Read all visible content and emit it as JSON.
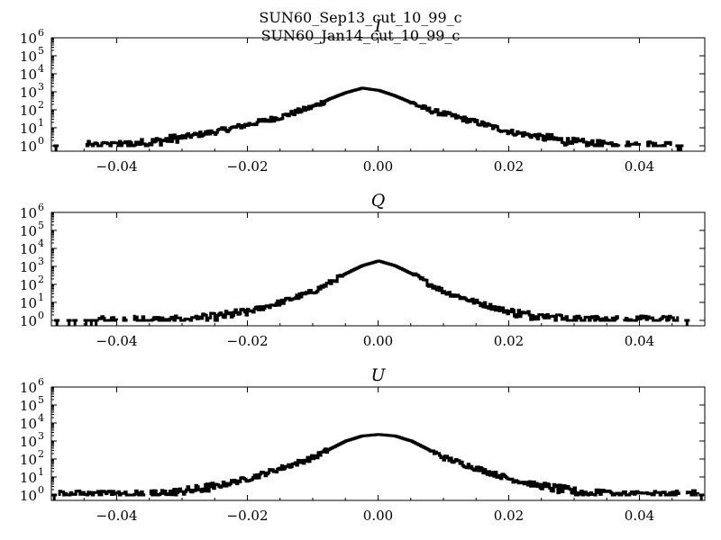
{
  "figure": {
    "title_lines": [
      "SUN60_Sep13_cut_10_99_c",
      "SUN60_Jan14_cut_10_99_c"
    ]
  },
  "chart_data": [
    {
      "type": "line",
      "title": "I",
      "xlim": [
        -0.05,
        0.05
      ],
      "ylim": [
        0.5,
        1000000
      ],
      "yscale": "log",
      "xticks": [
        "−0.04",
        "−0.02",
        "0.00",
        "0.02",
        "0.04"
      ],
      "xtick_values": [
        -0.04,
        -0.02,
        0.0,
        0.02,
        0.04
      ],
      "ytick_exponents": [
        "0",
        "1",
        "2",
        "3",
        "4",
        "5",
        "6"
      ],
      "ytick_base": "10",
      "grid": false,
      "series": [
        {
          "x": [
            -0.045,
            -0.04,
            -0.035,
            -0.03,
            -0.025,
            -0.02,
            -0.015,
            -0.01,
            -0.0075,
            -0.005,
            -0.0025,
            0.0,
            0.0025,
            0.005,
            0.0075,
            0.01,
            0.015,
            0.02,
            0.025,
            0.03,
            0.035,
            0.04,
            0.045
          ],
          "y": [
            1,
            1,
            1.5,
            3,
            6,
            15,
            40,
            150,
            400,
            900,
            1600,
            1200,
            600,
            250,
            100,
            60,
            20,
            6,
            3,
            1.5,
            1,
            1,
            1
          ]
        }
      ]
    },
    {
      "type": "line",
      "title": "Q",
      "xlim": [
        -0.05,
        0.05
      ],
      "ylim": [
        0.5,
        1000000
      ],
      "yscale": "log",
      "xticks": [
        "−0.04",
        "−0.02",
        "0.00",
        "0.02",
        "0.04"
      ],
      "xtick_values": [
        -0.04,
        -0.02,
        0.0,
        0.02,
        0.04
      ],
      "ytick_exponents": [
        "0",
        "1",
        "2",
        "3",
        "4",
        "5",
        "6"
      ],
      "ytick_base": "10",
      "grid": false,
      "series": [
        {
          "x": [
            -0.043,
            -0.035,
            -0.03,
            -0.025,
            -0.02,
            -0.015,
            -0.01,
            -0.0075,
            -0.005,
            -0.0025,
            0.0,
            0.0025,
            0.005,
            0.0075,
            0.01,
            0.015,
            0.02,
            0.025,
            0.03,
            0.035,
            0.046
          ],
          "y": [
            1,
            1,
            1,
            1.5,
            3,
            10,
            40,
            120,
            400,
            1100,
            2000,
            1100,
            400,
            120,
            40,
            10,
            3,
            1.5,
            1,
            1,
            1
          ]
        }
      ]
    },
    {
      "type": "line",
      "title": "U",
      "xlim": [
        -0.05,
        0.05
      ],
      "ylim": [
        0.5,
        1000000
      ],
      "yscale": "log",
      "xticks": [
        "−0.04",
        "−0.02",
        "0.00",
        "0.02",
        "0.04"
      ],
      "xtick_values": [
        -0.04,
        -0.02,
        0.0,
        0.02,
        0.04
      ],
      "ytick_exponents": [
        "0",
        "1",
        "2",
        "3",
        "4",
        "5",
        "6"
      ],
      "ytick_base": "10",
      "grid": false,
      "series": [
        {
          "x": [
            -0.049,
            -0.04,
            -0.035,
            -0.03,
            -0.025,
            -0.02,
            -0.015,
            -0.01,
            -0.0075,
            -0.005,
            -0.0025,
            0.0,
            0.0025,
            0.005,
            0.0075,
            0.01,
            0.015,
            0.02,
            0.025,
            0.03,
            0.035,
            0.04,
            0.049
          ],
          "y": [
            1,
            1,
            1,
            1.5,
            3,
            8,
            30,
            120,
            350,
            1000,
            1900,
            2300,
            1900,
            1000,
            350,
            120,
            30,
            8,
            3,
            1.5,
            1,
            1,
            1
          ]
        }
      ]
    }
  ]
}
